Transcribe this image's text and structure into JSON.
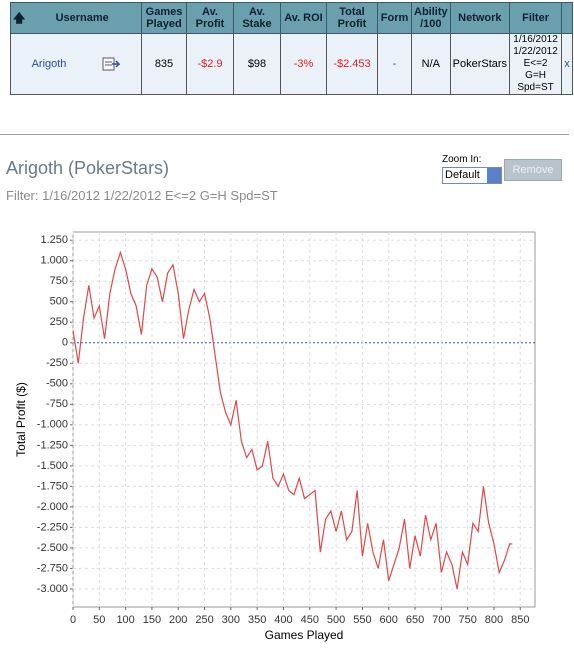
{
  "table": {
    "headers": [
      "Username",
      "Games Played",
      "Av. Profit",
      "Av. Stake",
      "Av. ROI",
      "Total Profit",
      "Form",
      "Ability /100",
      "Network",
      "Filter"
    ],
    "rows": [
      [
        "Arigoth",
        "835",
        "-$2.9",
        "$98",
        "-3%",
        "-$2.453",
        "-",
        "N/A",
        "PokerStars",
        "1/16/2012 1/22/2012 E<=2 G=H Spd=ST"
      ]
    ],
    "remove_link": "x"
  },
  "panel": {
    "title": "Arigoth (PokerStars)",
    "filter": "Filter: 1/16/2012 1/22/2012 E<=2 G=H Spd=ST",
    "zoom_label": "Zoom In:",
    "zoom_value": "Default",
    "button": "Remove"
  },
  "chart_data": {
    "type": "line",
    "xlabel": "Games Played",
    "ylabel": "Total Profit ($)",
    "color": "#e04848",
    "grid": true,
    "xlim": [
      0,
      878
    ],
    "ylim": [
      -3220,
      1350
    ],
    "xticks": [
      0,
      50,
      100,
      150,
      200,
      250,
      300,
      350,
      400,
      450,
      500,
      550,
      600,
      650,
      700,
      750,
      800,
      850
    ],
    "yticks": [
      {
        "value": 1250,
        "label": "1.250"
      },
      {
        "value": 1000,
        "label": "1.000"
      },
      750,
      500,
      250,
      0,
      -250,
      -500,
      -750,
      {
        "value": -1000,
        "label": "-1.000"
      },
      {
        "value": -1250,
        "label": "-1.250"
      },
      {
        "value": -1500,
        "label": "-1.500"
      },
      {
        "value": -1750,
        "label": "-1.750"
      },
      {
        "value": -2000,
        "label": "-2.000"
      },
      {
        "value": -2250,
        "label": "-2.250"
      },
      {
        "value": -2500,
        "label": "-2.500"
      },
      {
        "value": -2750,
        "label": "-2.750"
      },
      {
        "value": -3000,
        "label": "-3.000"
      }
    ],
    "x": [
      0,
      10,
      20,
      30,
      40,
      50,
      60,
      70,
      80,
      90,
      100,
      110,
      120,
      130,
      140,
      150,
      160,
      170,
      180,
      190,
      200,
      210,
      220,
      230,
      240,
      250,
      260,
      270,
      280,
      290,
      300,
      310,
      320,
      330,
      340,
      350,
      360,
      370,
      380,
      390,
      400,
      410,
      420,
      430,
      440,
      450,
      460,
      470,
      480,
      490,
      500,
      510,
      520,
      530,
      540,
      550,
      560,
      570,
      580,
      590,
      600,
      610,
      620,
      630,
      640,
      650,
      660,
      670,
      680,
      690,
      700,
      710,
      720,
      730,
      740,
      750,
      760,
      770,
      780,
      790,
      800,
      810,
      820,
      830,
      835
    ],
    "values": [
      150,
      -250,
      300,
      700,
      300,
      450,
      50,
      600,
      900,
      1100,
      900,
      600,
      450,
      100,
      700,
      900,
      800,
      500,
      850,
      950,
      600,
      50,
      400,
      650,
      500,
      600,
      300,
      -150,
      -600,
      -850,
      -1000,
      -700,
      -1200,
      -1400,
      -1300,
      -1550,
      -1500,
      -1200,
      -1650,
      -1750,
      -1600,
      -1800,
      -1850,
      -1650,
      -1900,
      -1850,
      -1800,
      -2550,
      -2150,
      -2050,
      -2300,
      -2050,
      -2400,
      -2300,
      -1800,
      -2600,
      -2200,
      -2550,
      -2750,
      -2400,
      -2900,
      -2700,
      -2500,
      -2150,
      -2750,
      -2350,
      -2600,
      -2100,
      -2400,
      -2200,
      -2800,
      -2550,
      -2700,
      -3000,
      -2550,
      -2700,
      -2200,
      -2300,
      -1750,
      -2200,
      -2450,
      -2800,
      -2650,
      -2450,
      -2453
    ]
  }
}
